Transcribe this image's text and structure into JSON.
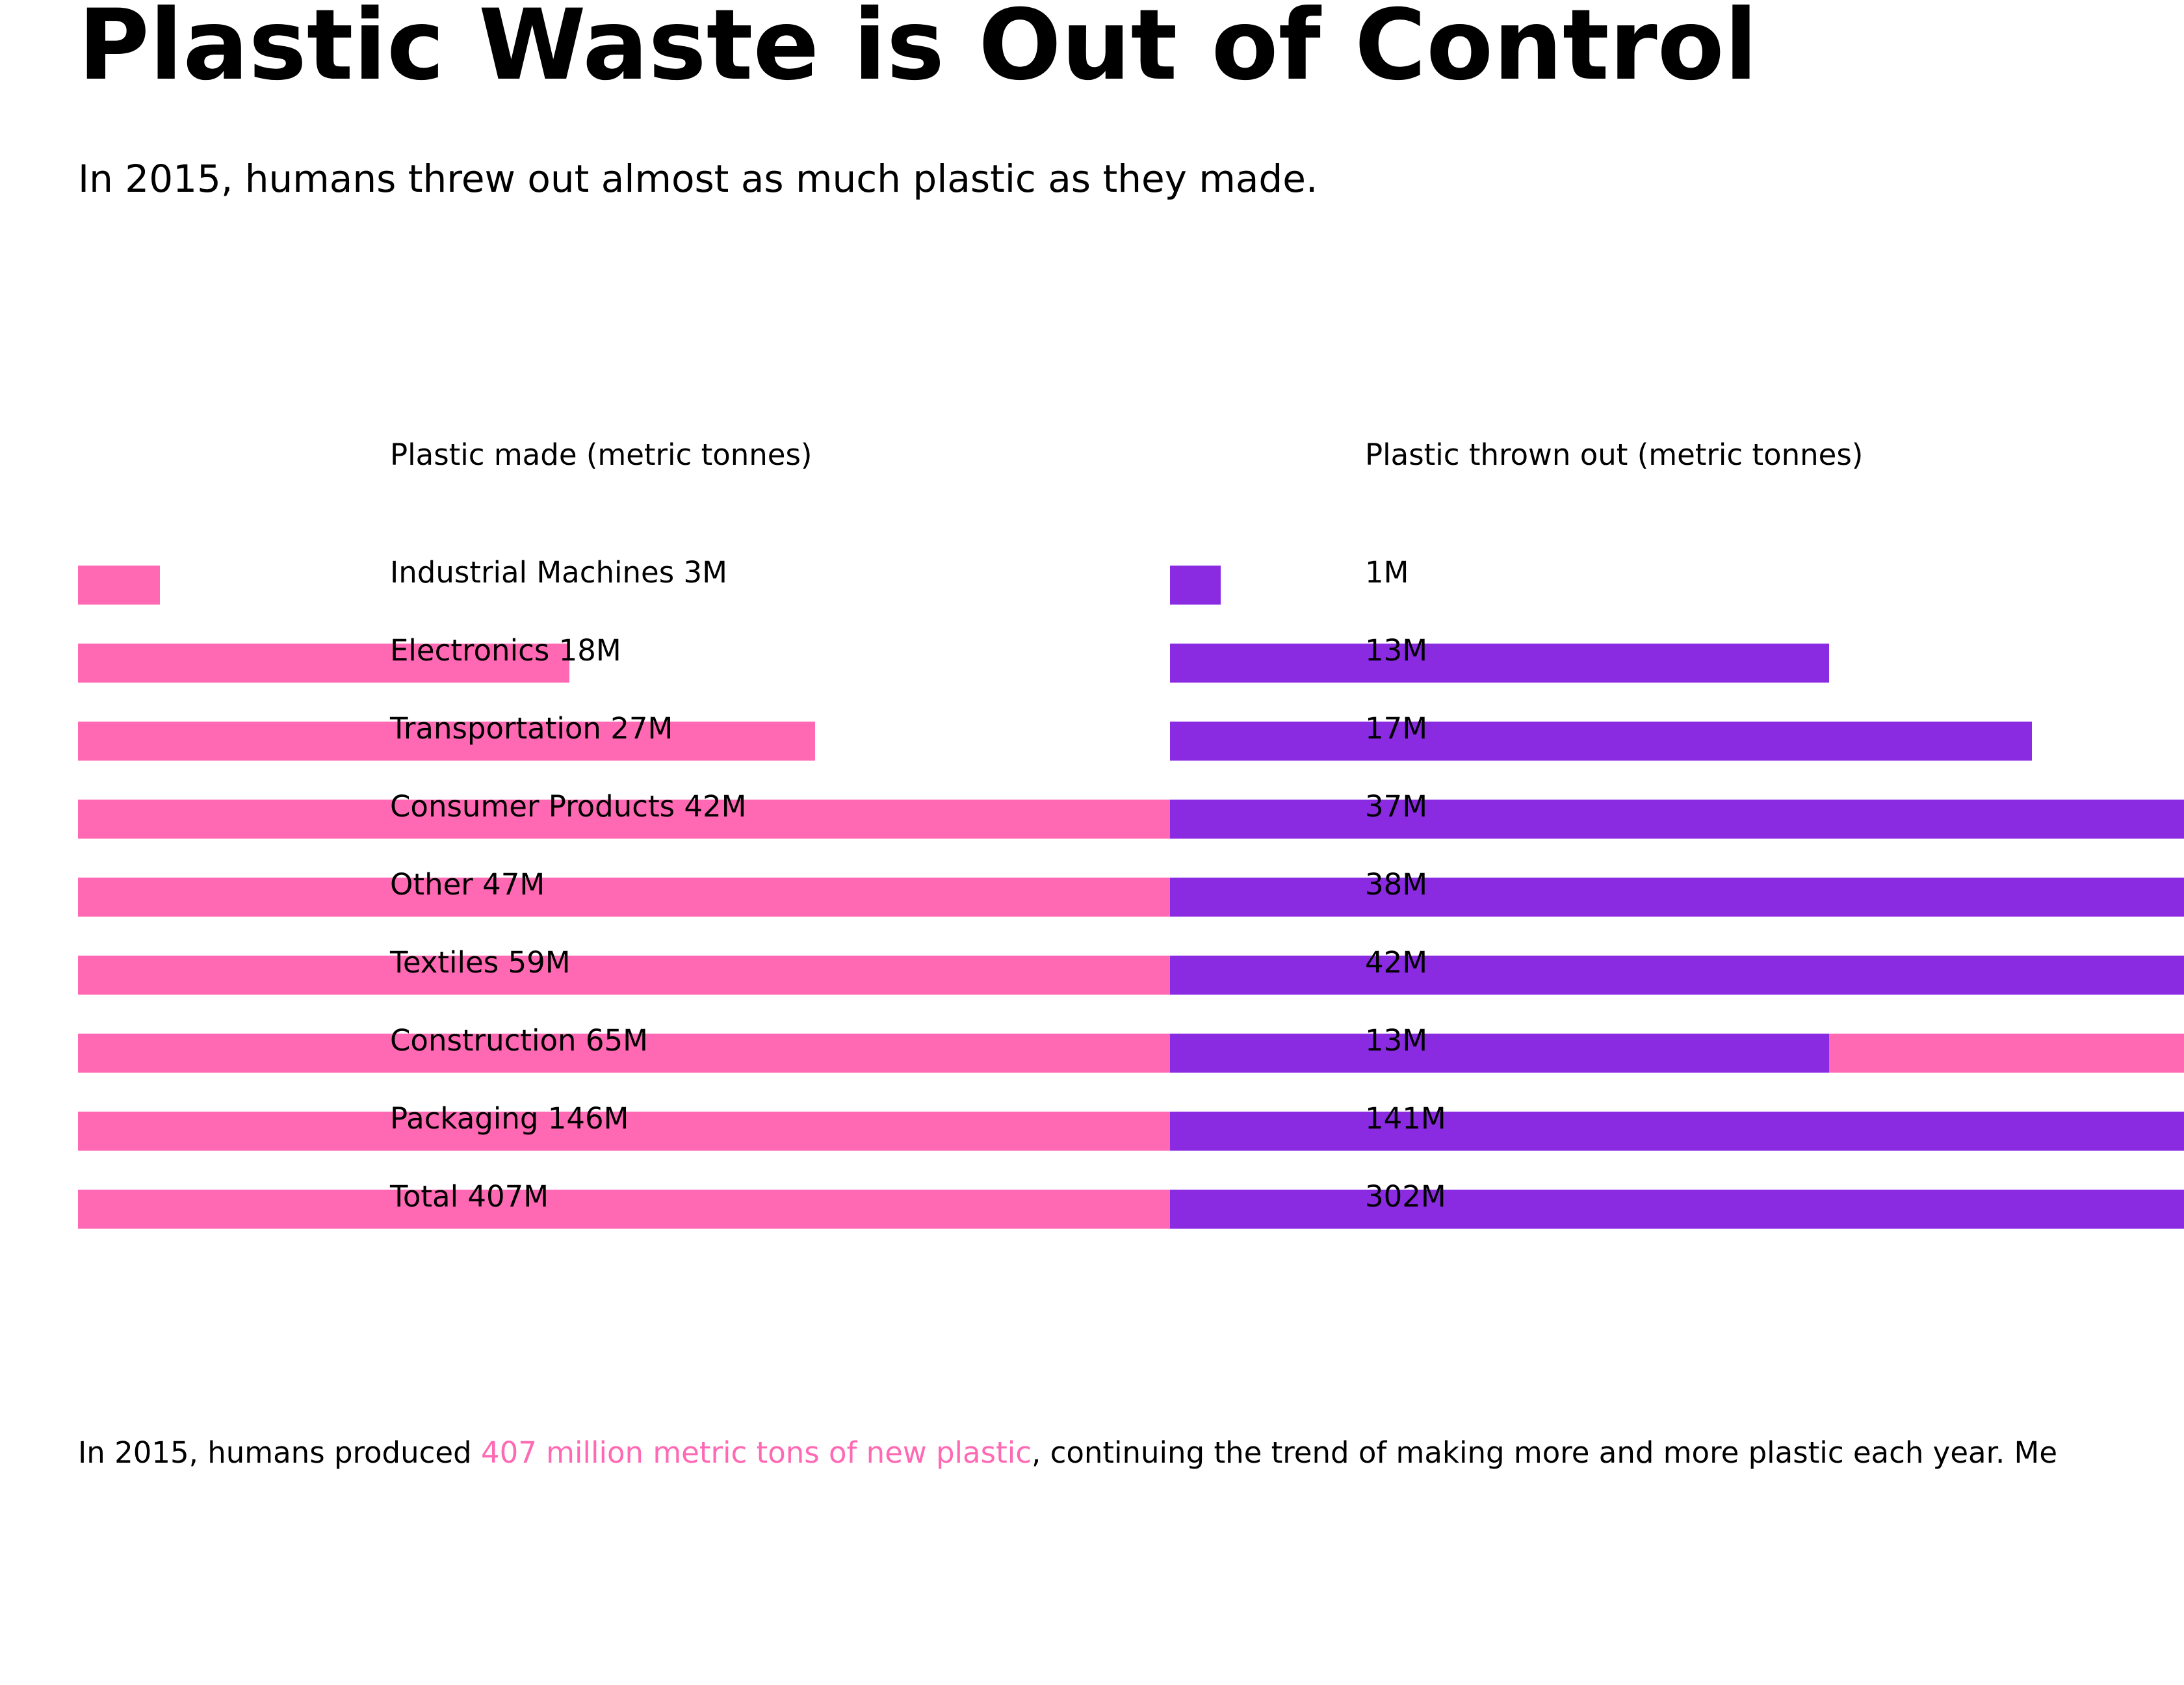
{
  "title": "Plastic Waste is Out of Control",
  "subtitle": "In 2015, humans threw out almost as much plastic as they made.",
  "chart_data": {
    "type": "bar",
    "made_header": "Plastic made (metric tonnes)",
    "thrown_header": "Plastic thrown out (metric tonnes)",
    "categories": [
      "Industrial Machines",
      "Electronics",
      "Transportation",
      "Consumer Products",
      "Other",
      "Textiles",
      "Construction",
      "Packaging",
      "Total"
    ],
    "series": [
      {
        "name": "Plastic made (metric tonnes)",
        "values": [
          3,
          18,
          27,
          42,
          47,
          59,
          65,
          146,
          407
        ],
        "labels": [
          "3M",
          "18M",
          "27M",
          "42M",
          "47M",
          "59M",
          "65M",
          "146M",
          "407M"
        ],
        "color": "#ff69b4"
      },
      {
        "name": "Plastic thrown out (metric tonnes)",
        "values": [
          1,
          13,
          17,
          37,
          38,
          42,
          13,
          141,
          302
        ],
        "labels": [
          "1M",
          "13M",
          "17M",
          "37M",
          "38M",
          "42M",
          "13M",
          "141M",
          "302M"
        ],
        "color": "#8a2be2"
      }
    ],
    "unit": "million metric tonnes"
  },
  "footnote": {
    "prefix": "In 2015, humans produced ",
    "highlight": "407 million metric tons of new plastic",
    "suffix": ", continuing the trend of making more and more plastic each year. Me",
    "highlight_color": "#ff69b4"
  }
}
